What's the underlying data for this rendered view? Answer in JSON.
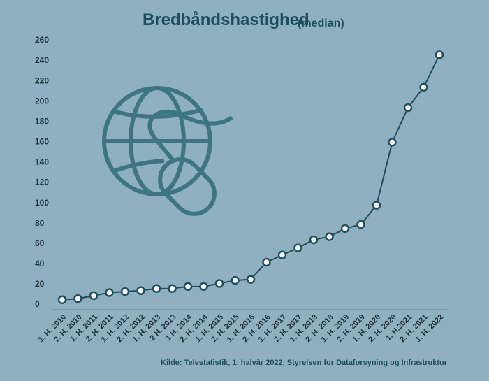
{
  "chart_data": {
    "type": "line",
    "title": "Bredbåndshastighed",
    "subtitle": "(median)",
    "source": "Kilde: Telestatistik, 1. halvår 2022, Styrelsen for Dataforsyning og Infrastruktur",
    "categories": [
      "1. H. 2010",
      "2. H. 2010",
      "1. H. 2011",
      "2. H. 2011",
      "1. H. 2012",
      "2. H. 2012",
      "1. H. 2013",
      "2 H. 2013",
      "1 H. 2014",
      "2. H. 2014",
      "1. H. 2015",
      "2. H. 2015",
      "1. H. 2016",
      "2. H. 2016",
      "1. H. 2017",
      "2. H. 2017",
      "1. H. 2018",
      "2. H. 2018",
      "1. H. 2019",
      "2. H. 2019",
      "1. H. 2020",
      "2. H. 2020",
      "1. H.2021",
      "2. H. 2021",
      "1. H. 2022"
    ],
    "values": [
      5,
      6,
      9,
      12,
      13,
      14,
      16,
      16,
      18,
      18,
      21,
      24,
      25,
      42,
      49,
      56,
      64,
      67,
      75,
      79,
      98,
      160,
      194,
      214,
      246
    ],
    "color": "#1d4f5e",
    "ylim": [
      0,
      260
    ],
    "yticks": [
      0,
      20,
      40,
      60,
      80,
      100,
      120,
      140,
      160,
      180,
      200,
      220,
      240,
      260
    ],
    "grid": false
  }
}
